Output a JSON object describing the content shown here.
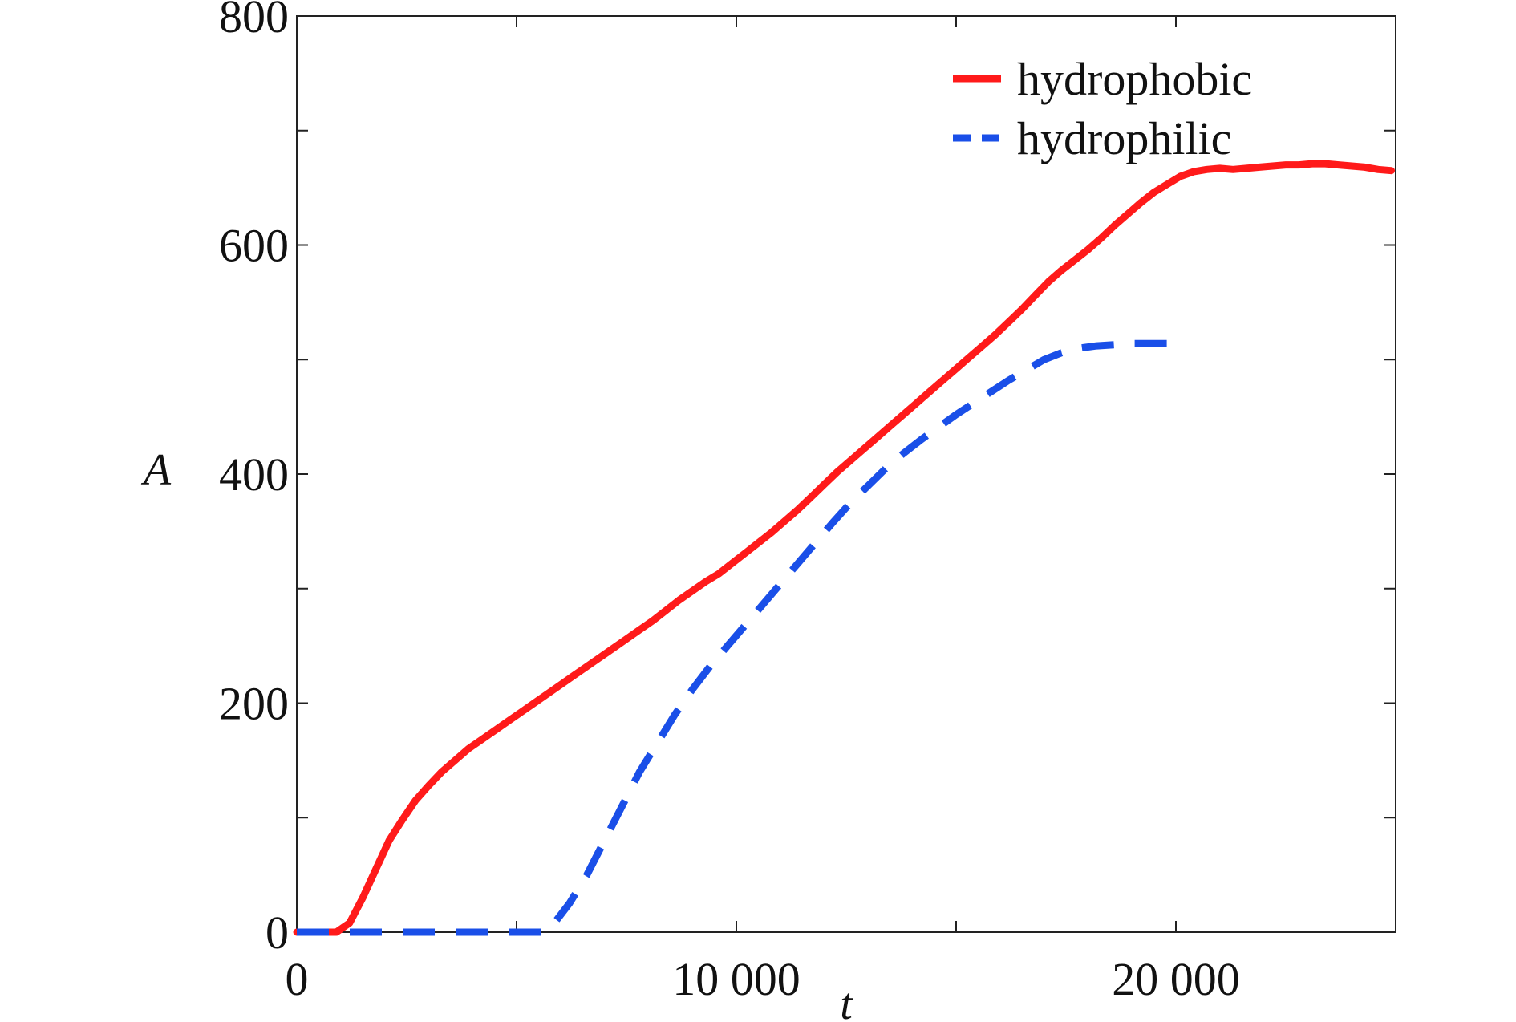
{
  "chart_data": {
    "type": "line",
    "title": "",
    "xlabel": "t",
    "ylabel": "A",
    "xlim": [
      0,
      25000
    ],
    "ylim": [
      0,
      800
    ],
    "x_ticks": [
      0,
      10000,
      20000
    ],
    "x_tick_labels": [
      "0",
      "10 000",
      "20 000"
    ],
    "x_minor_ticks": [
      5000,
      15000
    ],
    "y_ticks": [
      0,
      200,
      400,
      600,
      800
    ],
    "y_tick_labels": [
      "0",
      "200",
      "400",
      "600",
      "800"
    ],
    "y_minor_ticks": [
      100,
      300,
      500,
      700
    ],
    "grid": false,
    "legend_position": "top-right",
    "series": [
      {
        "name": "hydrophobic",
        "style": "solid",
        "color": "#ff1a1a",
        "x": [
          0,
          900,
          1200,
          1500,
          1800,
          2100,
          2400,
          2700,
          3000,
          3300,
          3600,
          3900,
          4200,
          4500,
          4800,
          5100,
          5400,
          5700,
          6000,
          6300,
          6600,
          6900,
          7200,
          7500,
          7800,
          8100,
          8400,
          8700,
          9000,
          9300,
          9600,
          9900,
          10200,
          10500,
          10800,
          11100,
          11400,
          11700,
          12000,
          12300,
          12600,
          12900,
          13200,
          13500,
          13800,
          14100,
          14400,
          14700,
          15000,
          15300,
          15600,
          15900,
          16200,
          16500,
          16800,
          17100,
          17400,
          17700,
          18000,
          18300,
          18600,
          18900,
          19200,
          19500,
          19800,
          20100,
          20400,
          20700,
          21000,
          21300,
          21600,
          21900,
          22200,
          22500,
          22800,
          23100,
          23400,
          23700,
          24000,
          24300,
          24600,
          24900
        ],
        "y": [
          0,
          0,
          8,
          30,
          55,
          80,
          98,
          115,
          128,
          140,
          150,
          160,
          168,
          176,
          184,
          192,
          200,
          208,
          216,
          224,
          232,
          240,
          248,
          256,
          264,
          272,
          281,
          290,
          298,
          306,
          313,
          322,
          331,
          340,
          349,
          359,
          369,
          380,
          391,
          402,
          412,
          422,
          432,
          442,
          452,
          462,
          472,
          482,
          492,
          502,
          512,
          522,
          533,
          544,
          556,
          568,
          578,
          587,
          596,
          606,
          617,
          627,
          637,
          646,
          653,
          660,
          664,
          666,
          667,
          666,
          667,
          668,
          669,
          670,
          670,
          671,
          671,
          670,
          669,
          668,
          666,
          665
        ]
      },
      {
        "name": "hydrophilic",
        "style": "dashed",
        "color": "#1a4fe8",
        "x": [
          0,
          5000,
          5600,
          5800,
          6200,
          6600,
          7000,
          7400,
          7800,
          8200,
          8600,
          9000,
          9400,
          9800,
          10200,
          10600,
          11000,
          11400,
          11800,
          12200,
          12600,
          13000,
          13400,
          13800,
          14200,
          14600,
          15000,
          15400,
          15800,
          16200,
          16600,
          17000,
          17400,
          17800,
          18200,
          18600,
          19000,
          19400,
          19800
        ],
        "y": [
          0,
          0,
          0,
          5,
          25,
          50,
          80,
          110,
          140,
          165,
          190,
          212,
          232,
          250,
          268,
          286,
          304,
          322,
          340,
          358,
          375,
          390,
          405,
          418,
          430,
          441,
          452,
          462,
          472,
          482,
          491,
          500,
          506,
          510,
          512,
          513,
          514,
          514,
          514
        ]
      }
    ]
  }
}
